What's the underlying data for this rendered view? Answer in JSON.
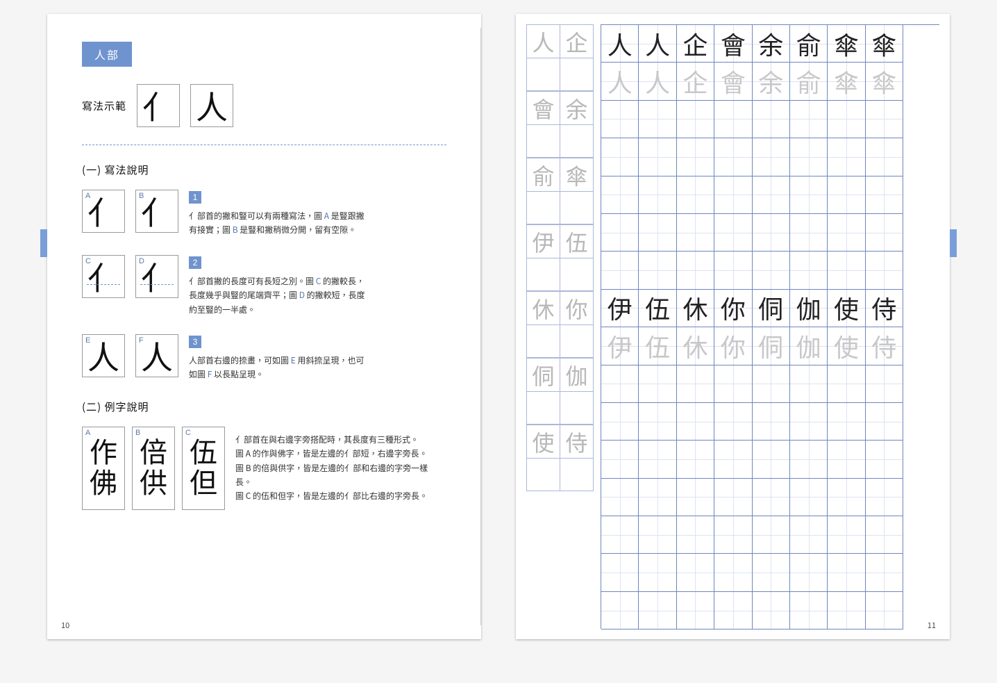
{
  "colors": {
    "accent": "#6f93ce",
    "grid_line": "#6d87bd",
    "grid_guide": "#dbe3f2",
    "ref_border": "#aab8d8",
    "ref_text": "#b8b8b8",
    "text": "#333333",
    "dark_char": "#222222",
    "light_char": "#c8c8c8",
    "page_bg": "#ffffff"
  },
  "left": {
    "radical_title": "人部",
    "demo_label": "寫法示範",
    "demo_chars": [
      "亻",
      "人"
    ],
    "section1_title": "(一) 寫法說明",
    "methods": [
      {
        "num": "1",
        "boxes": [
          {
            "lbl": "A",
            "char": "亻",
            "guide": false
          },
          {
            "lbl": "B",
            "char": "亻",
            "guide": false
          }
        ],
        "text_parts": [
          "亻部首的撇和豎可以有兩種寫法，圖 ",
          "A",
          " 是豎跟撇有接實；圖 ",
          "B",
          " 是豎和撇稍微分開，留有空隙。"
        ]
      },
      {
        "num": "2",
        "boxes": [
          {
            "lbl": "C",
            "char": "亻",
            "guide": true
          },
          {
            "lbl": "D",
            "char": "亻",
            "guide": true
          }
        ],
        "text_parts": [
          "亻部首撇的長度可有長短之別。圖 ",
          "C",
          " 的撇較長，長度幾乎與豎的尾端齊平；圖 ",
          "D",
          " 的撇較短，長度約至豎的一半處。"
        ]
      },
      {
        "num": "3",
        "boxes": [
          {
            "lbl": "E",
            "char": "人",
            "guide": false
          },
          {
            "lbl": "F",
            "char": "人",
            "guide": false
          }
        ],
        "text_parts": [
          "人部首右邊的捺畫，可如圖 ",
          "E",
          " 用斜捺呈現，也可如圖 ",
          "F",
          " 以長點呈現。"
        ]
      }
    ],
    "section2_title": "(二) 例字說明",
    "examples": {
      "cols": [
        {
          "lbl": "A",
          "chars": [
            "作",
            "佛"
          ]
        },
        {
          "lbl": "B",
          "chars": [
            "倍",
            "供"
          ]
        },
        {
          "lbl": "C",
          "chars": [
            "伍",
            "但"
          ]
        }
      ],
      "text_lines": [
        "亻部首在與右邊字旁搭配時，其長度有三種形式。",
        "圖 A 的作與佛字，皆是左邊的亻部短，右邊字旁長。",
        "圖 B 的倍與供字，皆是左邊的亻部和右邊的字旁一樣長。",
        "圖 C 的伍和但字，皆是左邊的亻部比右邊的字旁長。"
      ]
    },
    "page_num": "10"
  },
  "right": {
    "ref_col": [
      [
        "人",
        "企"
      ],
      [
        "會",
        "余"
      ],
      [
        "俞",
        "傘"
      ],
      [
        "伊",
        "伍"
      ],
      [
        "休",
        "你"
      ],
      [
        "侗",
        "伽"
      ],
      [
        "使",
        "侍"
      ]
    ],
    "grid": {
      "cols": 8,
      "rows": 16,
      "content": {
        "0": {
          "chars": [
            "人",
            "人",
            "企",
            "會",
            "余",
            "俞",
            "傘",
            "傘"
          ],
          "style": "dark"
        },
        "1": {
          "chars": [
            "人",
            "人",
            "企",
            "會",
            "余",
            "俞",
            "傘",
            "傘"
          ],
          "style": "light"
        },
        "7": {
          "chars": [
            "伊",
            "伍",
            "休",
            "你",
            "侗",
            "伽",
            "使",
            "侍"
          ],
          "style": "dark"
        },
        "8": {
          "chars": [
            "伊",
            "伍",
            "休",
            "你",
            "侗",
            "伽",
            "使",
            "侍"
          ],
          "style": "light"
        }
      }
    },
    "page_num": "11"
  }
}
